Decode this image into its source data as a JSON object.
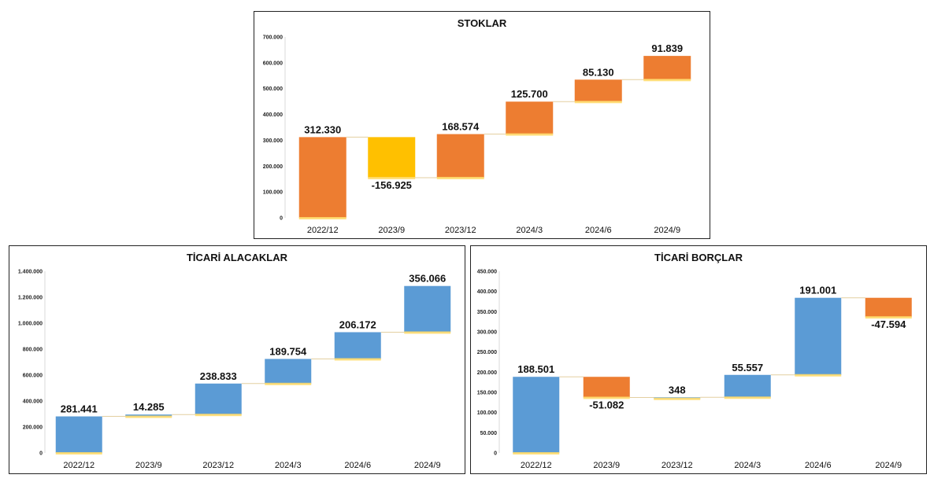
{
  "colors": {
    "increase_orange": "#ED7D31",
    "decrease_yellow": "#FFC000",
    "increase_blue": "#5B9BD5",
    "decrease_orange": "#ED7D31"
  },
  "chart_data": [
    {
      "id": "stoklar",
      "type": "waterfall",
      "title": "STOKLAR",
      "categories": [
        "2022/12",
        "2023/9",
        "2023/12",
        "2024/3",
        "2024/6",
        "2024/9"
      ],
      "deltas": [
        312330,
        -156925,
        168574,
        125700,
        85130,
        91839
      ],
      "labels": [
        "312.330",
        "-156.925",
        "168.574",
        "125.700",
        "85.130",
        "91.839"
      ],
      "bar_colors": [
        "#ED7D31",
        "#FFC000",
        "#ED7D31",
        "#ED7D31",
        "#ED7D31",
        "#ED7D31"
      ],
      "ylim": [
        0,
        700000
      ],
      "yticks": [
        "0",
        "100.000",
        "200.000",
        "300.000",
        "400.000",
        "500.000",
        "600.000",
        "700.000"
      ]
    },
    {
      "id": "alacak",
      "type": "waterfall",
      "title": "TİCARİ ALACAKLAR",
      "categories": [
        "2022/12",
        "2023/9",
        "2023/12",
        "2024/3",
        "2024/6",
        "2024/9"
      ],
      "deltas": [
        281441,
        14285,
        238833,
        189754,
        206172,
        356066
      ],
      "labels": [
        "281.441",
        "14.285",
        "238.833",
        "189.754",
        "206.172",
        "356.066"
      ],
      "bar_colors": [
        "#5B9BD5",
        "#5B9BD5",
        "#5B9BD5",
        "#5B9BD5",
        "#5B9BD5",
        "#5B9BD5"
      ],
      "ylim": [
        0,
        1400000
      ],
      "yticks": [
        "0",
        "200.000",
        "400.000",
        "600.000",
        "800.000",
        "1.000.000",
        "1.200.000",
        "1.400.000"
      ]
    },
    {
      "id": "borc",
      "type": "waterfall",
      "title": "TİCARİ BORÇLAR",
      "categories": [
        "2022/12",
        "2023/9",
        "2023/12",
        "2024/3",
        "2024/6",
        "2024/9"
      ],
      "deltas": [
        188501,
        -51082,
        348,
        55557,
        191001,
        -47594
      ],
      "labels": [
        "188.501",
        "-51.082",
        "348",
        "55.557",
        "191.001",
        "-47.594"
      ],
      "bar_colors": [
        "#5B9BD5",
        "#ED7D31",
        "#5B9BD5",
        "#5B9BD5",
        "#5B9BD5",
        "#ED7D31"
      ],
      "ylim": [
        0,
        450000
      ],
      "yticks": [
        "0",
        "50.000",
        "100.000",
        "150.000",
        "200.000",
        "250.000",
        "300.000",
        "350.000",
        "400.000",
        "450.000"
      ]
    }
  ]
}
